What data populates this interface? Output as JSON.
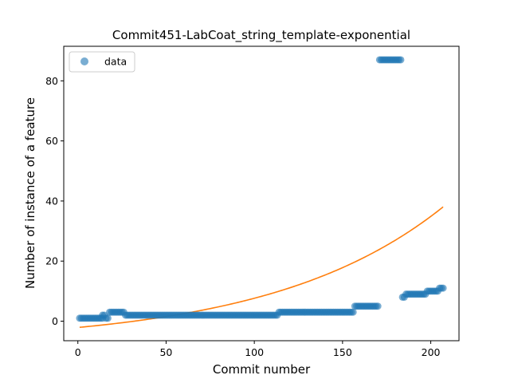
{
  "chart_data": {
    "type": "scatter",
    "title": "Commit451-LabCoat_string_template-exponential",
    "xlabel": "Commit number",
    "ylabel": "Number of instance of a feature",
    "xlim": [
      -8,
      216
    ],
    "ylim": [
      -6.5,
      91.5
    ],
    "xticks": [
      0,
      50,
      100,
      150,
      200
    ],
    "yticks": [
      0,
      20,
      40,
      60,
      80
    ],
    "grid": false,
    "legend": {
      "placement": "top-left",
      "entries": [
        "data"
      ]
    },
    "colors": {
      "data": "#1f77b4",
      "fit": "#ff7f0e"
    },
    "data_runs": [
      {
        "x_start": 1,
        "x_end": 14,
        "y": 1
      },
      {
        "x_start": 14,
        "x_end": 15,
        "y": 2
      },
      {
        "x_start": 16,
        "x_end": 17,
        "y": 1
      },
      {
        "x_start": 18,
        "x_end": 26,
        "y": 3
      },
      {
        "x_start": 27,
        "x_end": 113,
        "y": 2
      },
      {
        "x_start": 114,
        "x_end": 156,
        "y": 3
      },
      {
        "x_start": 157,
        "x_end": 170,
        "y": 5
      },
      {
        "x_start": 171,
        "x_end": 183,
        "y": 87
      },
      {
        "x_start": 184,
        "x_end": 185,
        "y": 8
      },
      {
        "x_start": 186,
        "x_end": 197,
        "y": 9
      },
      {
        "x_start": 198,
        "x_end": 204,
        "y": 10
      },
      {
        "x_start": 205,
        "x_end": 207,
        "y": 11
      }
    ],
    "fit": {
      "model": "exponential",
      "x_start": 1,
      "x_end": 207,
      "a": 5.4,
      "b": 0.0103,
      "c": -7.5
    }
  }
}
